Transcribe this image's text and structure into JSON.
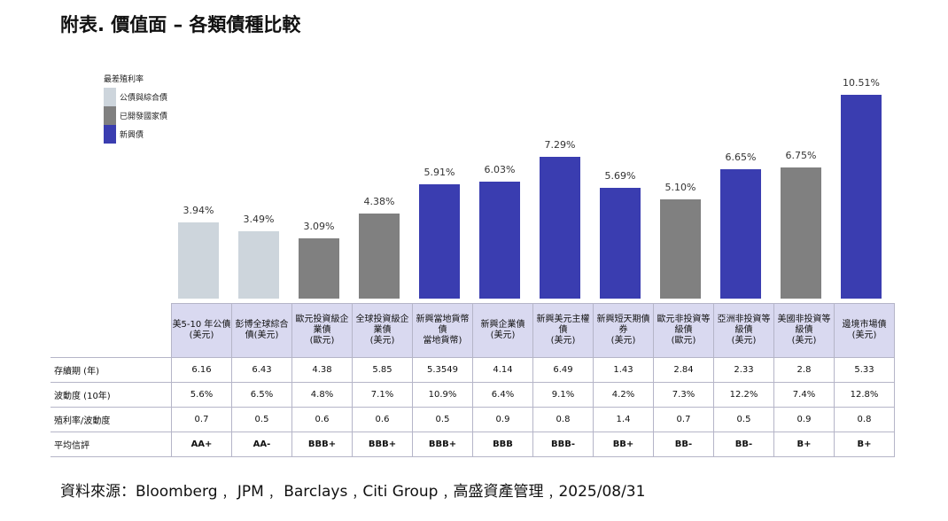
{
  "title": "附表. 價值面 – 各類債種比較",
  "legend": {
    "title": "最差殖利率",
    "items": [
      {
        "label": "公債與綜合債",
        "color": "#cdd5dc"
      },
      {
        "label": "已開發國家債",
        "color": "#808080"
      },
      {
        "label": "新興債",
        "color": "#3a3db0"
      }
    ]
  },
  "chart_data": {
    "type": "bar",
    "title": "最差殖利率",
    "categories": [
      "美5-10 年公債\n(美元)",
      "彭博全球綜合\n債(美元)",
      "歐元投資級企\n業債\n(歐元)",
      "全球投資級企\n業債\n(美元)",
      "新興當地貨幣\n債\n當地貨幣)",
      "新興企業債\n(美元)",
      "新興美元主權\n債\n(美元)",
      "新興短天期債\n券\n(美元)",
      "歐元非投資等\n級債\n(歐元)",
      "亞洲非投資等\n級債\n(美元)",
      "美國非投資等\n級債\n(美元)",
      "邊境市場債\n(美元)"
    ],
    "values": [
      3.94,
      3.49,
      3.09,
      4.38,
      5.91,
      6.03,
      7.29,
      5.69,
      5.1,
      6.65,
      6.75,
      10.51
    ],
    "value_labels": [
      "3.94%",
      "3.49%",
      "3.09%",
      "4.38%",
      "5.91%",
      "6.03%",
      "7.29%",
      "5.69%",
      "5.10%",
      "6.65%",
      "6.75%",
      "10.51%"
    ],
    "groups": [
      0,
      0,
      1,
      1,
      2,
      2,
      2,
      2,
      1,
      2,
      1,
      2
    ],
    "ylim": [
      0,
      11
    ]
  },
  "table": {
    "rows": [
      {
        "label": "存續期 (年)",
        "values": [
          "6.16",
          "6.43",
          "4.38",
          "5.85",
          "5.3549",
          "4.14",
          "6.49",
          "1.43",
          "2.84",
          "2.33",
          "2.8",
          "5.33"
        ]
      },
      {
        "label": "波動度 (10年)",
        "values": [
          "5.6%",
          "6.5%",
          "4.8%",
          "7.1%",
          "10.9%",
          "6.4%",
          "9.1%",
          "4.2%",
          "7.3%",
          "12.2%",
          "7.4%",
          "12.8%"
        ]
      },
      {
        "label": "殖利率/波動度",
        "values": [
          "0.7",
          "0.5",
          "0.6",
          "0.6",
          "0.5",
          "0.9",
          "0.8",
          "1.4",
          "0.7",
          "0.5",
          "0.9",
          "0.8"
        ]
      },
      {
        "label": "平均信評",
        "values": [
          "AA+",
          "AA-",
          "BBB+",
          "BBB+",
          "BBB+",
          "BBB",
          "BBB-",
          "BB+",
          "BB-",
          "BB-",
          "B+",
          "B+"
        ],
        "bold": true
      }
    ]
  },
  "source": "資料來源：Bloomberg﹐ JPM﹐  Barclays﹐Citi Group﹐高盛資產管理﹐2025/08/31"
}
